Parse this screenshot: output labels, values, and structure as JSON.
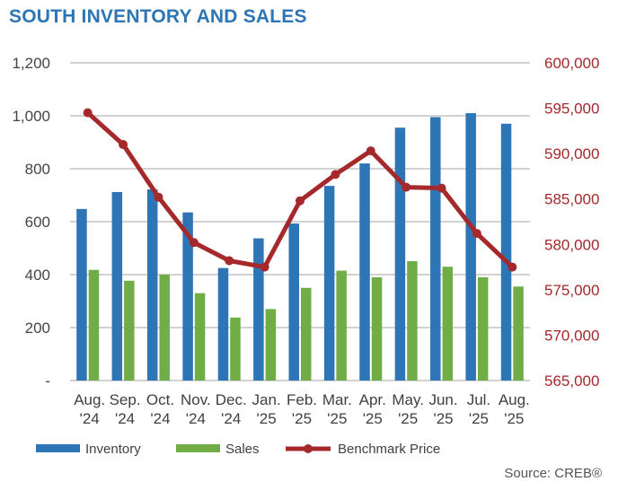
{
  "header": {
    "title": "SOUTH INVENTORY AND SALES"
  },
  "footer": {
    "source": "Source: CREB®"
  },
  "colors": {
    "title": "#2e75b6",
    "inventory": "#2e75b6",
    "sales": "#70ad47",
    "benchmark": "#a5282a",
    "left_axis": "#444444",
    "right_axis": "#a5282a",
    "grid": "#a6a6a6"
  },
  "chart_data": {
    "type": "bar",
    "categories": [
      [
        "Aug.",
        "'24"
      ],
      [
        "Sep.",
        "'24"
      ],
      [
        "Oct.",
        "'24"
      ],
      [
        "Nov.",
        "'24"
      ],
      [
        "Dec.",
        "'24"
      ],
      [
        "Jan.",
        "'25"
      ],
      [
        "Feb.",
        "'25"
      ],
      [
        "Mar.",
        "'25"
      ],
      [
        "Apr.",
        "'25"
      ],
      [
        "May.",
        "'25"
      ],
      [
        "Jun.",
        "'25"
      ],
      [
        "Jul.",
        "'25"
      ],
      [
        "Aug.",
        "'25"
      ]
    ],
    "series": [
      {
        "name": "Inventory",
        "type": "bar",
        "axis": "left",
        "values": [
          648,
          712,
          722,
          635,
          425,
          537,
          593,
          735,
          820,
          955,
          995,
          1010,
          970
        ]
      },
      {
        "name": "Sales",
        "type": "bar",
        "axis": "left",
        "values": [
          418,
          377,
          400,
          330,
          238,
          270,
          350,
          415,
          390,
          451,
          430,
          390,
          355
        ]
      },
      {
        "name": "Benchmark Price",
        "type": "line",
        "axis": "right",
        "values": [
          594500,
          591000,
          585200,
          580200,
          578200,
          577500,
          584800,
          587700,
          590300,
          586300,
          586200,
          581200,
          577500
        ]
      }
    ],
    "left_axis": {
      "min": 0,
      "max": 1200,
      "step": 200,
      "tick_labels": [
        "-",
        "200",
        "400",
        "600",
        "800",
        "1,000",
        "1,200"
      ]
    },
    "right_axis": {
      "min": 565000,
      "max": 600000,
      "step": 5000,
      "tick_labels": [
        "565,000",
        "570,000",
        "575,000",
        "580,000",
        "585,000",
        "590,000",
        "595,000",
        "600,000"
      ]
    },
    "legend": {
      "position": "bottom",
      "labels": [
        "Inventory",
        "Sales",
        "Benchmark Price"
      ]
    },
    "grid": true
  }
}
